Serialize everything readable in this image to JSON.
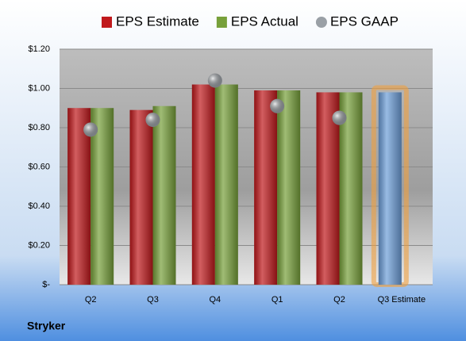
{
  "chart_data": {
    "type": "bar",
    "caption": "Stryker",
    "categories": [
      "Q2",
      "Q3",
      "Q4",
      "Q1",
      "Q2",
      "Q3 Estimate"
    ],
    "series": [
      {
        "name": "EPS Estimate",
        "color": "#c0191c",
        "values": [
          0.9,
          0.89,
          1.02,
          0.99,
          0.98,
          0.98
        ],
        "point_colors": [
          "#c0191c",
          "#c0191c",
          "#c0191c",
          "#c0191c",
          "#c0191c",
          "#6d9ed8"
        ]
      },
      {
        "name": "EPS Actual",
        "color": "#77a03a",
        "values": [
          0.9,
          0.91,
          1.02,
          0.99,
          0.98,
          null
        ]
      },
      {
        "name": "EPS GAAP",
        "color": "#9aa0a6",
        "marker": "circle",
        "values": [
          0.79,
          0.84,
          1.04,
          0.91,
          0.85,
          null
        ]
      }
    ],
    "ylim": [
      0,
      1.2
    ],
    "yticks": [
      {
        "value": 0,
        "label": "$-"
      },
      {
        "value": 0.2,
        "label": "$0.20"
      },
      {
        "value": 0.4,
        "label": "$0.40"
      },
      {
        "value": 0.6,
        "label": "$0.60"
      },
      {
        "value": 0.8,
        "label": "$0.80"
      },
      {
        "value": 1.0,
        "label": "$1.00"
      },
      {
        "value": 1.2,
        "label": "$1.20"
      }
    ],
    "grid": true,
    "legend": "top"
  }
}
